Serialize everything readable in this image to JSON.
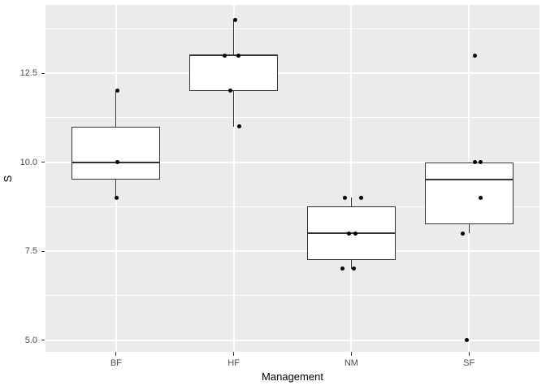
{
  "figure": {
    "background": "#FFFFFF",
    "panel_background": "#EBEBEB",
    "gridline_color": "#FFFFFF",
    "box_fill": "#FFFFFF",
    "box_stroke": "#333333",
    "point_color": "#000000",
    "tick_label_color": "#4D4D4D",
    "axis_title_color": "#000000"
  },
  "chart_data": {
    "type": "boxplot",
    "title": "",
    "xlabel": "Management",
    "ylabel": "S",
    "categories": [
      "BF",
      "HF",
      "NM",
      "SF"
    ],
    "y_major_ticks": [
      5.0,
      7.5,
      10.0,
      12.5
    ],
    "y_tick_labels": [
      "5.0",
      "7.5",
      "10.0",
      "12.5"
    ],
    "y_minor_ticks": [
      6.25,
      8.75,
      11.25,
      13.75
    ],
    "ylim": [
      4.67,
      14.42
    ],
    "grid": true,
    "legend": "none",
    "groups": [
      {
        "category": "BF",
        "values": [
          9,
          10,
          12
        ],
        "q1": 9.5,
        "median": 10,
        "q3": 11,
        "whisker_low": 9,
        "whisker_high": 12,
        "outliers": [],
        "points": [
          {
            "y": 12,
            "dx": 2
          },
          {
            "y": 10,
            "dx": 2
          },
          {
            "y": 9,
            "dx": 1
          }
        ]
      },
      {
        "category": "HF",
        "values": [
          11,
          12,
          13,
          13,
          14
        ],
        "q1": 12,
        "median": 13,
        "q3": 13,
        "whisker_low": 11,
        "whisker_high": 14,
        "outliers": [],
        "points": [
          {
            "y": 14,
            "dx": 2
          },
          {
            "y": 13,
            "dx": -11
          },
          {
            "y": 13,
            "dx": 6
          },
          {
            "y": 12,
            "dx": -4
          },
          {
            "y": 11,
            "dx": 7
          }
        ]
      },
      {
        "category": "NM",
        "values": [
          7,
          7,
          8,
          8,
          9,
          9
        ],
        "q1": 7.25,
        "median": 8,
        "q3": 8.75,
        "whisker_low": 7,
        "whisker_high": 9,
        "outliers": [],
        "points": [
          {
            "y": 9,
            "dx": -8
          },
          {
            "y": 9,
            "dx": 12
          },
          {
            "y": 8,
            "dx": -3
          },
          {
            "y": 8,
            "dx": 5
          },
          {
            "y": 7,
            "dx": -11
          },
          {
            "y": 7,
            "dx": 3
          }
        ]
      },
      {
        "category": "SF",
        "values": [
          5,
          8,
          9,
          10,
          10,
          13
        ],
        "q1": 8.25,
        "median": 9.5,
        "q3": 10,
        "whisker_low": 8,
        "whisker_high": 10,
        "outliers": [
          5,
          13
        ],
        "points": [
          {
            "y": 13,
            "dx": 7
          },
          {
            "y": 10,
            "dx": 7
          },
          {
            "y": 10,
            "dx": 14
          },
          {
            "y": 9,
            "dx": 14
          },
          {
            "y": 8,
            "dx": -8
          },
          {
            "y": 5,
            "dx": -3
          }
        ]
      }
    ]
  }
}
